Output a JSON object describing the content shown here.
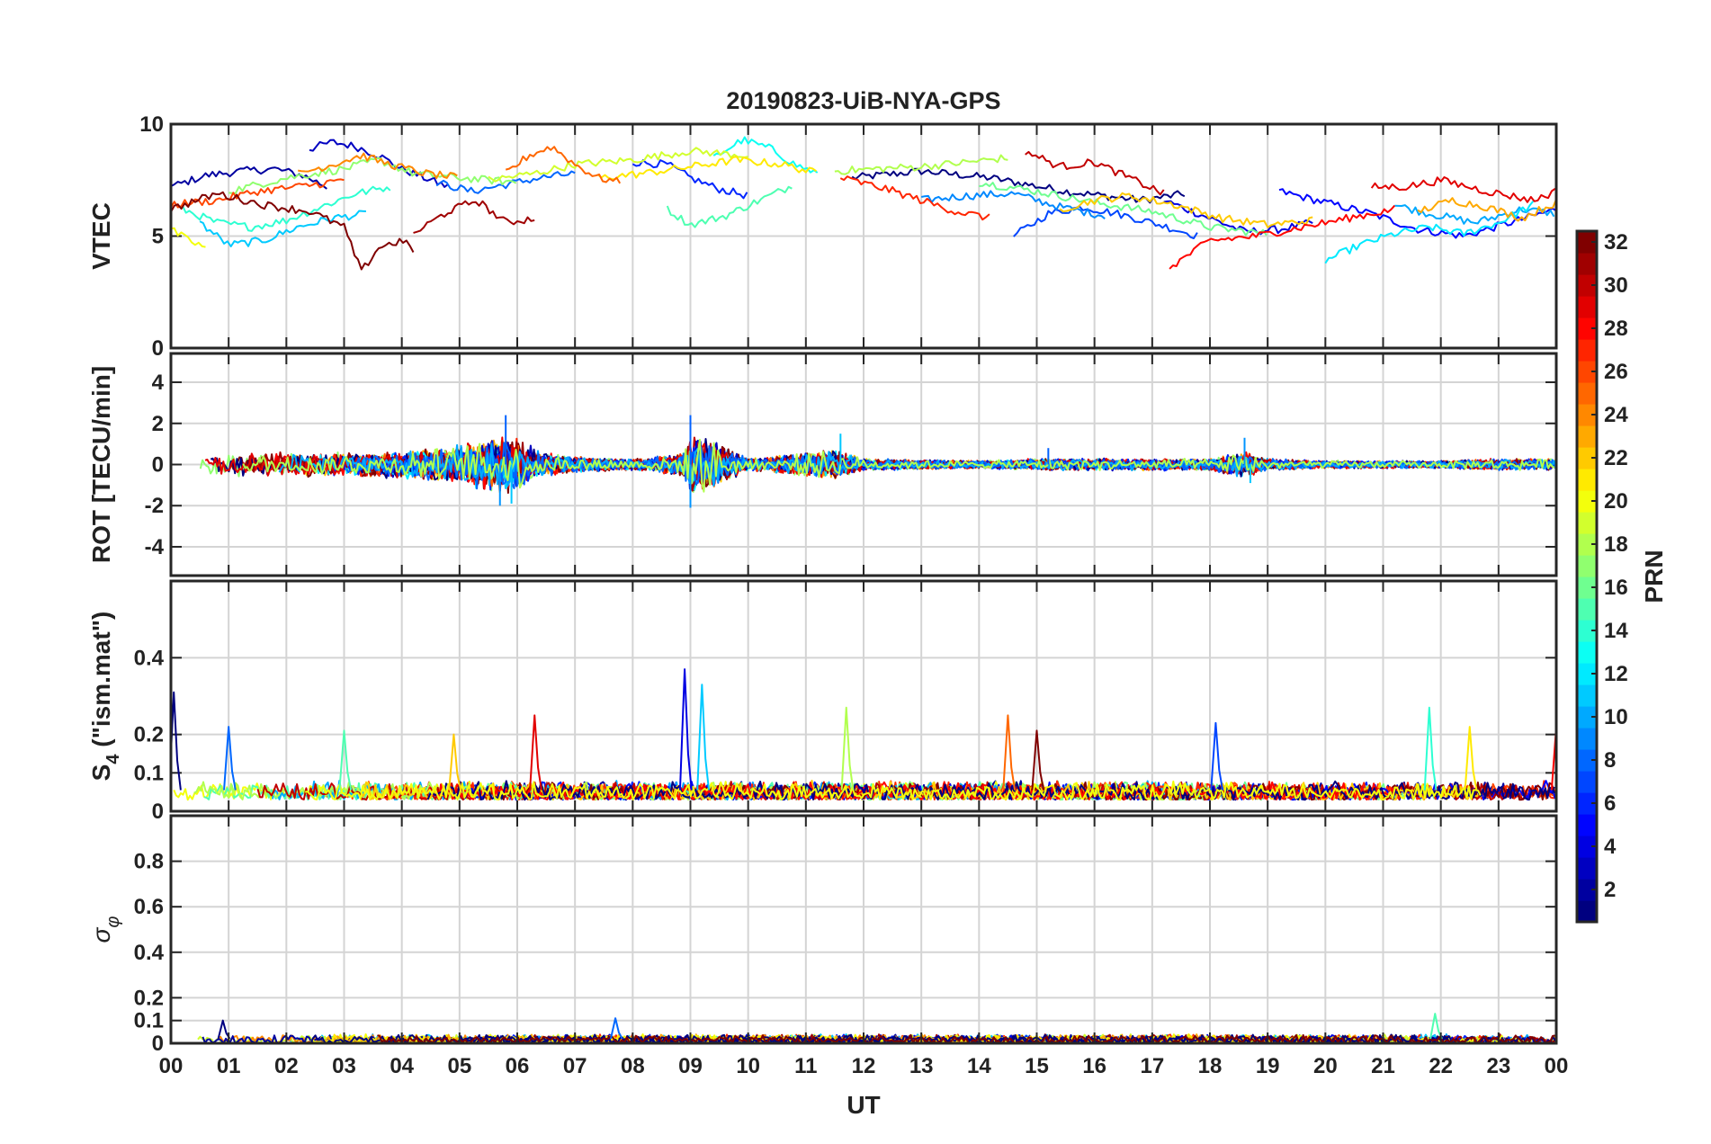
{
  "chart_data": {
    "type": "line",
    "title": "20190823-UiB-NYA-GPS",
    "xlabel": "UT",
    "x_ticks": [
      "00",
      "01",
      "02",
      "03",
      "04",
      "05",
      "06",
      "07",
      "08",
      "09",
      "10",
      "11",
      "12",
      "13",
      "14",
      "15",
      "16",
      "17",
      "18",
      "19",
      "20",
      "21",
      "22",
      "23",
      "00"
    ],
    "xlim_hours": [
      0,
      24
    ],
    "colorbar": {
      "label": "PRN",
      "range": [
        1,
        32
      ],
      "ticks": [
        "2",
        "4",
        "6",
        "8",
        "10",
        "12",
        "14",
        "16",
        "18",
        "20",
        "22",
        "24",
        "26",
        "28",
        "30",
        "32"
      ],
      "colormap": "jet"
    },
    "panels": [
      {
        "id": "vtec",
        "ylabel": "VTEC",
        "ylim": [
          0,
          10
        ],
        "yticks": [
          0,
          5,
          10
        ],
        "ytick_labels": [
          "0",
          "5",
          "10"
        ],
        "description_values": "per-PRN VTEC arcs mostly between 4.5 and 9.5 TECU",
        "series": [
          {
            "prn": 1,
            "x": [
              11.8,
              13.0,
              14.2,
              15.5,
              16.8,
              17.6
            ],
            "y": [
              7.6,
              7.9,
              7.6,
              7.0,
              6.6,
              6.9
            ]
          },
          {
            "prn": 2,
            "x": [
              0.0,
              0.6,
              1.2,
              1.8,
              2.3,
              2.7
            ],
            "y": [
              7.2,
              7.7,
              7.9,
              8.0,
              7.7,
              7.2
            ]
          },
          {
            "prn": 3,
            "x": [
              2.4,
              2.8,
              3.2,
              3.6,
              4.0,
              4.4,
              4.8
            ],
            "y": [
              8.9,
              9.2,
              9.0,
              8.6,
              8.0,
              7.6,
              7.2
            ]
          },
          {
            "prn": 4,
            "x": [
              17.2,
              18.0,
              18.6,
              19.2,
              19.8
            ],
            "y": [
              6.6,
              5.8,
              5.2,
              5.3,
              5.6
            ]
          },
          {
            "prn": 5,
            "x": [
              19.2,
              20.0,
              20.8,
              21.6,
              22.4,
              23.2,
              24.0
            ],
            "y": [
              7.0,
              6.5,
              6.0,
              5.3,
              5.0,
              5.6,
              6.2
            ]
          },
          {
            "prn": 6,
            "x": [
              8.0,
              8.6,
              9.0,
              9.5,
              10.0
            ],
            "y": [
              8.3,
              8.2,
              7.6,
              7.1,
              6.8
            ]
          },
          {
            "prn": 7,
            "x": [
              14.6,
              15.2,
              15.8,
              16.4,
              17.0,
              17.8
            ],
            "y": [
              5.0,
              6.0,
              6.3,
              6.0,
              5.6,
              5.0
            ]
          },
          {
            "prn": 8,
            "x": [
              4.6,
              5.2,
              5.8,
              6.4,
              7.0
            ],
            "y": [
              7.4,
              7.0,
              7.3,
              7.6,
              7.8
            ]
          },
          {
            "prn": 9,
            "x": [
              13.0,
              13.8,
              14.6,
              15.4,
              16.2
            ],
            "y": [
              6.6,
              6.8,
              6.9,
              6.3,
              5.9
            ]
          },
          {
            "prn": 10,
            "x": [
              21.2,
              21.8,
              22.6,
              23.4,
              24.0
            ],
            "y": [
              6.4,
              6.0,
              5.6,
              6.2,
              6.0
            ]
          },
          {
            "prn": 11,
            "x": [
              0.5,
              1.0,
              1.6,
              2.2,
              2.8,
              3.4
            ],
            "y": [
              5.6,
              4.6,
              4.8,
              5.4,
              5.8,
              6.0
            ]
          },
          {
            "prn": 12,
            "x": [
              20.0,
              20.6,
              21.2,
              21.8,
              22.4,
              23.0,
              23.6
            ],
            "y": [
              3.9,
              4.6,
              5.1,
              5.4,
              5.1,
              5.6,
              6.4
            ]
          },
          {
            "prn": 13,
            "x": [
              9.4,
              9.9,
              10.4,
              10.8,
              11.2
            ],
            "y": [
              8.5,
              9.3,
              8.9,
              8.2,
              7.8
            ]
          },
          {
            "prn": 14,
            "x": [
              0.2,
              0.8,
              1.4,
              2.0,
              2.6,
              3.2,
              3.8
            ],
            "y": [
              6.2,
              5.6,
              5.4,
              5.7,
              6.3,
              6.9,
              7.2
            ]
          },
          {
            "prn": 15,
            "x": [
              8.6,
              9.0,
              9.6,
              10.2,
              10.8
            ],
            "y": [
              6.2,
              5.5,
              5.9,
              6.6,
              7.3
            ]
          },
          {
            "prn": 16,
            "x": [
              14.0,
              15.0,
              16.0,
              17.0,
              18.0,
              19.0
            ],
            "y": [
              7.4,
              7.0,
              6.5,
              6.1,
              5.4,
              5.1
            ]
          },
          {
            "prn": 17,
            "x": [
              1.0,
              2.0,
              3.0,
              3.6,
              4.2,
              5.0,
              6.0
            ],
            "y": [
              7.0,
              7.6,
              8.0,
              8.4,
              7.8,
              7.6,
              7.4
            ]
          },
          {
            "prn": 18,
            "x": [
              11.5,
              12.2,
              13.0,
              13.8,
              14.5
            ],
            "y": [
              7.9,
              8.0,
              8.1,
              8.3,
              8.5
            ]
          },
          {
            "prn": 19,
            "x": [
              5.5,
              6.3,
              7.0,
              8.0,
              9.0,
              10.0
            ],
            "y": [
              7.5,
              7.8,
              8.2,
              8.4,
              8.8,
              8.6
            ]
          },
          {
            "prn": 20,
            "x": [
              0.0,
              0.3,
              0.6
            ],
            "y": [
              5.3,
              4.8,
              4.5
            ]
          },
          {
            "prn": 21,
            "x": [
              7.4,
              8.2,
              9.0,
              9.8,
              10.6,
              11.2
            ],
            "y": [
              7.6,
              7.8,
              8.1,
              8.4,
              8.2,
              7.8
            ]
          },
          {
            "prn": 22,
            "x": [
              15.4,
              16.0,
              16.6,
              17.4,
              18.2,
              19.0,
              19.8
            ],
            "y": [
              6.2,
              6.6,
              6.8,
              6.4,
              5.8,
              5.5,
              5.7
            ]
          },
          {
            "prn": 23,
            "x": [
              21.6,
              22.2,
              22.8,
              23.4,
              24.0
            ],
            "y": [
              6.1,
              6.6,
              6.3,
              5.8,
              6.5
            ]
          },
          {
            "prn": 24,
            "x": [
              2.2,
              2.8,
              3.3,
              3.8,
              4.4,
              5.0
            ],
            "y": [
              7.8,
              8.2,
              8.6,
              8.2,
              7.8,
              7.6
            ]
          },
          {
            "prn": 25,
            "x": [
              5.8,
              6.2,
              6.6,
              7.0,
              7.4,
              7.8
            ],
            "y": [
              7.8,
              8.6,
              9.0,
              8.2,
              7.6,
              7.4
            ]
          },
          {
            "prn": 26,
            "x": [
              0.0,
              0.8,
              1.5,
              2.2,
              3.0
            ],
            "y": [
              6.4,
              6.6,
              7.0,
              7.2,
              7.5
            ]
          },
          {
            "prn": 27,
            "x": [
              11.6,
              12.4,
              13.0,
              13.6,
              14.2
            ],
            "y": [
              7.6,
              7.1,
              6.6,
              6.1,
              5.8
            ]
          },
          {
            "prn": 28,
            "x": [
              17.3,
              18.0,
              18.8,
              19.6,
              20.4,
              21.2
            ],
            "y": [
              3.6,
              4.8,
              5.0,
              5.4,
              5.8,
              6.2
            ]
          },
          {
            "prn": 29,
            "x": [
              20.8,
              21.4,
              22.0,
              22.8,
              23.6,
              24.0
            ],
            "y": [
              7.2,
              7.2,
              7.5,
              7.0,
              6.6,
              7.0
            ]
          },
          {
            "prn": 30,
            "x": [
              14.8,
              15.4,
              16.0,
              16.6,
              17.2
            ],
            "y": [
              8.8,
              8.1,
              8.3,
              7.6,
              6.9
            ]
          },
          {
            "prn": 31,
            "x": [
              4.2,
              4.8,
              5.3,
              5.8,
              6.3
            ],
            "y": [
              5.1,
              6.1,
              6.6,
              5.6,
              5.8
            ]
          },
          {
            "prn": 32,
            "x": [
              0.0,
              0.8,
              1.6,
              2.4,
              3.0,
              3.3,
              3.6,
              4.0,
              4.2
            ],
            "y": [
              6.2,
              6.9,
              6.4,
              6.1,
              5.4,
              3.4,
              4.5,
              4.8,
              4.4
            ]
          }
        ]
      },
      {
        "id": "rot",
        "ylabel": "ROT [TECU/min]",
        "ylim": [
          -5.4,
          5.4
        ],
        "yticks": [
          -4,
          -2,
          0,
          2,
          4
        ],
        "ytick_labels": [
          "-4",
          "-2",
          "0",
          "2",
          "4"
        ],
        "noise_envelope": {
          "x": [
            0,
            1,
            2,
            3,
            4,
            5,
            5.8,
            6.5,
            7,
            8,
            8.9,
            9,
            10,
            11,
            11.5,
            12,
            14,
            15,
            16,
            17,
            18,
            18.6,
            19,
            20,
            21,
            22,
            23,
            24
          ],
          "amp": [
            0.6,
            0.6,
            0.6,
            0.6,
            0.7,
            1.0,
            1.6,
            0.6,
            0.4,
            0.3,
            0.6,
            1.8,
            0.3,
            0.6,
            0.8,
            0.3,
            0.2,
            0.3,
            0.3,
            0.3,
            0.3,
            0.7,
            0.3,
            0.2,
            0.2,
            0.2,
            0.3,
            0.3
          ]
        },
        "peaks": [
          {
            "x": 5.8,
            "y": 2.4
          },
          {
            "x": 5.7,
            "y": -2.0
          },
          {
            "x": 5.9,
            "y": -1.9
          },
          {
            "x": 9.0,
            "y": 2.4
          },
          {
            "x": 9.0,
            "y": -2.1
          },
          {
            "x": 11.6,
            "y": 1.5
          },
          {
            "x": 15.2,
            "y": 0.8
          },
          {
            "x": 18.6,
            "y": 1.3
          },
          {
            "x": 18.7,
            "y": -0.9
          }
        ]
      },
      {
        "id": "s4",
        "ylabel": "S4 (\"ism.mat\")",
        "ylabel_main": "S",
        "ylabel_sub": "4",
        "ylabel_rest": " (\"ism.mat\")",
        "ylim": [
          0,
          0.6
        ],
        "yticks": [
          0,
          0.1,
          0.2,
          0.4
        ],
        "ytick_labels": [
          "0",
          "0.1",
          "0.2",
          "0.4"
        ],
        "baseline": [
          0.03,
          0.08
        ],
        "peaks": [
          {
            "x": 0.05,
            "y": 0.31
          },
          {
            "x": 1.0,
            "y": 0.22
          },
          {
            "x": 3.0,
            "y": 0.21
          },
          {
            "x": 4.9,
            "y": 0.2
          },
          {
            "x": 6.3,
            "y": 0.25
          },
          {
            "x": 8.9,
            "y": 0.37
          },
          {
            "x": 9.2,
            "y": 0.33
          },
          {
            "x": 11.7,
            "y": 0.27
          },
          {
            "x": 14.5,
            "y": 0.25
          },
          {
            "x": 15.0,
            "y": 0.21
          },
          {
            "x": 18.1,
            "y": 0.23
          },
          {
            "x": 21.8,
            "y": 0.27
          },
          {
            "x": 22.5,
            "y": 0.22
          },
          {
            "x": 24.0,
            "y": 0.22
          }
        ]
      },
      {
        "id": "sigphi",
        "ylabel": "σφ",
        "ylabel_main": "σ",
        "ylabel_sub": "φ",
        "ylim": [
          0,
          1.0
        ],
        "yticks": [
          0,
          0.1,
          0.2,
          0.4,
          0.6,
          0.8
        ],
        "ytick_labels": [
          "0",
          "0.1",
          "0.2",
          "0.4",
          "0.6",
          "0.8"
        ],
        "baseline": [
          0.0,
          0.04
        ],
        "peaks": [
          {
            "x": 0.9,
            "y": 0.1
          },
          {
            "x": 7.7,
            "y": 0.11
          },
          {
            "x": 21.9,
            "y": 0.13
          }
        ]
      }
    ]
  }
}
